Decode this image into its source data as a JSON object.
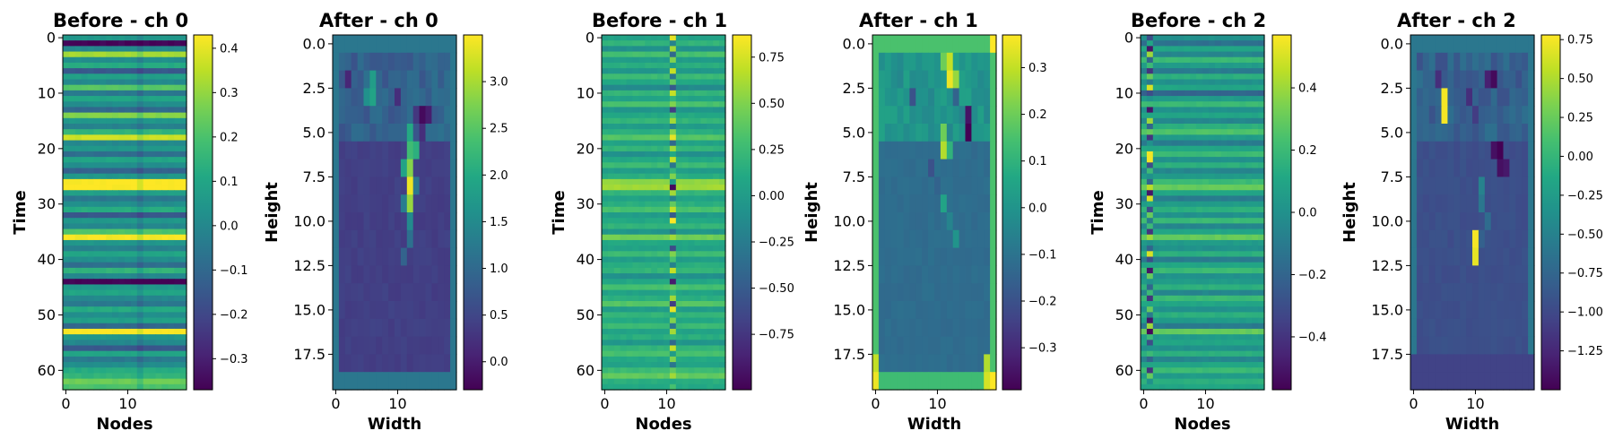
{
  "chart_data": [
    {
      "type": "heatmap",
      "title": "Before - ch 0",
      "xlabel": "Nodes",
      "ylabel": "Time",
      "shape": [
        64,
        20
      ],
      "xticks": [
        0,
        10
      ],
      "xtick_labels": [
        "0",
        "10"
      ],
      "yticks": [
        0,
        10,
        20,
        30,
        40,
        50,
        60
      ],
      "ytick_labels": [
        "0",
        "10",
        "20",
        "30",
        "40",
        "50",
        "60"
      ],
      "colorbar": {
        "min": -0.37,
        "max": 0.43,
        "ticks": [
          -0.3,
          -0.2,
          -0.1,
          0.0,
          0.1,
          0.2,
          0.3,
          0.4
        ],
        "tick_labels": [
          "−0.3",
          "−0.2",
          "−0.1",
          "0.0",
          "0.1",
          "0.2",
          "0.3",
          "0.4"
        ]
      },
      "colormap": "viridis",
      "pattern": "row-stripes",
      "row_values": [
        0.05,
        -0.36,
        0.0,
        0.32,
        0.02,
        0.12,
        -0.15,
        0.08,
        0.0,
        0.22,
        -0.05,
        0.1,
        0.02,
        -0.1,
        0.28,
        0.05,
        -0.02,
        0.15,
        0.37,
        0.0,
        0.05,
        -0.08,
        0.1,
        0.02,
        -0.12,
        0.05,
        0.43,
        0.43,
        0.08,
        -0.05,
        0.02,
        0.12,
        -0.15,
        0.05,
        0.0,
        0.2,
        0.42,
        0.05,
        -0.02,
        0.1,
        0.02,
        -0.08,
        0.15,
        0.0,
        -0.37,
        0.05,
        0.1,
        0.0,
        -0.05,
        0.12,
        0.02,
        0.08,
        -0.1,
        0.43,
        0.05,
        0.0,
        -0.15,
        0.1,
        -0.05,
        0.02,
        0.12,
        0.15,
        0.25,
        0.2
      ],
      "special_col": 12,
      "col_value": -0.05
    },
    {
      "type": "heatmap",
      "title": "After - ch 0",
      "xlabel": "Width",
      "ylabel": "Height",
      "shape": [
        20,
        20
      ],
      "xticks": [
        0,
        10
      ],
      "xtick_labels": [
        "0",
        "10"
      ],
      "yticks": [
        0,
        2.5,
        5.0,
        7.5,
        10.0,
        12.5,
        15.0,
        17.5
      ],
      "ytick_labels": [
        "0.0",
        "2.5",
        "5.0",
        "7.5",
        "10.0",
        "12.5",
        "15.0",
        "17.5"
      ],
      "colorbar": {
        "min": -0.3,
        "max": 3.5,
        "ticks": [
          0.0,
          0.5,
          1.0,
          1.5,
          2.0,
          2.5,
          3.0
        ],
        "tick_labels": [
          "0.0",
          "0.5",
          "1.0",
          "1.5",
          "2.0",
          "2.5",
          "3.0"
        ],
        "tick_precision": 1
      },
      "colormap": "viridis",
      "pattern": "after",
      "border_value": 1.2,
      "bottom_value": 1.2,
      "bottom_rows": 1,
      "interior_value": 0.4,
      "upper_rows": [
        1,
        5
      ],
      "upper_value": 0.9,
      "blobs": [
        {
          "r": 2,
          "c": 2,
          "v": 0.1
        },
        {
          "r": 2,
          "c": 6,
          "v": 1.8
        },
        {
          "r": 3,
          "c": 5,
          "v": 1.6
        },
        {
          "r": 3,
          "c": 6,
          "v": 1.9
        },
        {
          "r": 3,
          "c": 10,
          "v": 0.2
        },
        {
          "r": 4,
          "c": 14,
          "v": -0.2
        },
        {
          "r": 4,
          "c": 15,
          "v": 0.0
        },
        {
          "r": 4,
          "c": 13,
          "v": 0.3
        },
        {
          "r": 5,
          "c": 14,
          "v": 0.2
        },
        {
          "r": 5,
          "c": 12,
          "v": 2.0
        },
        {
          "r": 6,
          "c": 12,
          "v": 2.3
        },
        {
          "r": 6,
          "c": 13,
          "v": 2.1
        },
        {
          "r": 7,
          "c": 12,
          "v": 2.8
        },
        {
          "r": 7,
          "c": 11,
          "v": 1.9
        },
        {
          "r": 8,
          "c": 12,
          "v": 3.4
        },
        {
          "r": 8,
          "c": 11,
          "v": 0.4
        },
        {
          "r": 8,
          "c": 13,
          "v": 1.2
        },
        {
          "r": 9,
          "c": 12,
          "v": 2.9
        },
        {
          "r": 9,
          "c": 11,
          "v": 1.3
        },
        {
          "r": 10,
          "c": 12,
          "v": 1.5
        },
        {
          "r": 11,
          "c": 12,
          "v": 1.1
        },
        {
          "r": 12,
          "c": 11,
          "v": 0.9
        }
      ]
    },
    {
      "type": "heatmap",
      "title": "Before - ch 1",
      "xlabel": "Nodes",
      "ylabel": "Time",
      "shape": [
        64,
        20
      ],
      "xticks": [
        0,
        10
      ],
      "xtick_labels": [
        "0",
        "10"
      ],
      "yticks": [
        0,
        10,
        20,
        30,
        40,
        50,
        60
      ],
      "ytick_labels": [
        "0",
        "10",
        "20",
        "30",
        "40",
        "50",
        "60"
      ],
      "colorbar": {
        "min": -1.05,
        "max": 0.87,
        "ticks": [
          -0.75,
          -0.5,
          -0.25,
          0.0,
          0.25,
          0.5,
          0.75
        ],
        "tick_labels": [
          "−0.75",
          "−0.50",
          "−0.25",
          "0.00",
          "0.25",
          "0.50",
          "0.75"
        ]
      },
      "colormap": "viridis",
      "pattern": "row-stripes",
      "row_values": [
        0.05,
        0.2,
        -0.1,
        0.3,
        0.0,
        0.15,
        -0.05,
        0.25,
        0.1,
        -0.15,
        0.2,
        0.05,
        0.3,
        -0.05,
        0.1,
        0.2,
        0.0,
        0.15,
        0.35,
        0.05,
        0.2,
        -0.1,
        0.1,
        0.25,
        0.0,
        0.15,
        0.55,
        0.6,
        0.2,
        0.05,
        0.15,
        0.3,
        0.0,
        0.1,
        0.2,
        -0.05,
        0.45,
        0.1,
        0.05,
        0.25,
        0.0,
        0.15,
        0.2,
        -0.1,
        0.1,
        0.3,
        0.05,
        0.15,
        0.35,
        0.0,
        0.2,
        0.1,
        0.25,
        0.05,
        0.15,
        -0.05,
        0.2,
        0.3,
        0.1,
        0.05,
        0.25,
        0.4,
        0.15,
        0.1
      ],
      "special_col": 11,
      "col_values": [
        0.8,
        -0.2,
        0.6,
        -0.4,
        0.5,
        0.0,
        0.7,
        -0.3,
        0.4,
        -0.5,
        0.7,
        0.2,
        0.5,
        -0.7,
        0.3,
        0.6,
        -0.2,
        0.5,
        0.8,
        -0.4,
        0.6,
        0.1,
        0.7,
        -0.3,
        0.2,
        0.5,
        0.0,
        -1.0,
        0.6,
        -0.2,
        0.4,
        0.7,
        -0.5,
        0.9,
        0.2,
        -0.3,
        0.6,
        0.1,
        -0.6,
        0.5,
        0.3,
        -0.2,
        0.7,
        0.0,
        -0.9,
        0.4,
        0.2,
        0.6,
        -0.7,
        0.8,
        0.1,
        0.5,
        -0.3,
        0.6,
        0.2,
        -0.4,
        0.7,
        0.0,
        0.5,
        -0.3,
        0.4,
        0.6,
        0.1,
        0.3
      ]
    },
    {
      "type": "heatmap",
      "title": "After - ch 1",
      "xlabel": "Width",
      "ylabel": "Height",
      "shape": [
        20,
        20
      ],
      "xticks": [
        0,
        10
      ],
      "xtick_labels": [
        "0",
        "10"
      ],
      "yticks": [
        0,
        2.5,
        5.0,
        7.5,
        10.0,
        12.5,
        15.0,
        17.5
      ],
      "ytick_labels": [
        "0.0",
        "2.5",
        "5.0",
        "7.5",
        "10.0",
        "12.5",
        "15.0",
        "17.5"
      ],
      "colorbar": {
        "min": -0.39,
        "max": 0.37,
        "ticks": [
          -0.3,
          -0.2,
          -0.1,
          0.0,
          0.1,
          0.2,
          0.3
        ],
        "tick_labels": [
          "−0.3",
          "−0.2",
          "−0.1",
          "0.0",
          "0.1",
          "0.2",
          "0.3"
        ]
      },
      "colormap": "viridis",
      "pattern": "after",
      "border_value": 0.15,
      "bottom_value": 0.13,
      "bottom_rows": 1,
      "interior_value": -0.12,
      "upper_rows": [
        1,
        5
      ],
      "upper_value": 0.0,
      "blobs": [
        {
          "r": 0,
          "c": 19,
          "v": 0.37
        },
        {
          "r": 1,
          "c": 12,
          "v": 0.3
        },
        {
          "r": 2,
          "c": 12,
          "v": 0.35
        },
        {
          "r": 2,
          "c": 13,
          "v": 0.25
        },
        {
          "r": 1,
          "c": 11,
          "v": 0.2
        },
        {
          "r": 3,
          "c": 6,
          "v": -0.2
        },
        {
          "r": 3,
          "c": 13,
          "v": -0.15
        },
        {
          "r": 4,
          "c": 15,
          "v": -0.35
        },
        {
          "r": 5,
          "c": 15,
          "v": -0.39
        },
        {
          "r": 4,
          "c": 14,
          "v": -0.05
        },
        {
          "r": 5,
          "c": 11,
          "v": 0.2
        },
        {
          "r": 6,
          "c": 11,
          "v": 0.28
        },
        {
          "r": 6,
          "c": 12,
          "v": 0.1
        },
        {
          "r": 7,
          "c": 9,
          "v": -0.2
        },
        {
          "r": 8,
          "c": 10,
          "v": -0.15
        },
        {
          "r": 9,
          "c": 11,
          "v": 0.05
        },
        {
          "r": 10,
          "c": 12,
          "v": -0.05
        },
        {
          "r": 11,
          "c": 13,
          "v": 0.0
        },
        {
          "r": 18,
          "c": 0,
          "v": 0.3
        },
        {
          "r": 19,
          "c": 0,
          "v": 0.35
        },
        {
          "r": 19,
          "c": 19,
          "v": 0.37
        },
        {
          "r": 18,
          "c": 18,
          "v": 0.28
        },
        {
          "r": 19,
          "c": 18,
          "v": 0.32
        }
      ]
    },
    {
      "type": "heatmap",
      "title": "Before - ch 2",
      "xlabel": "Nodes",
      "ylabel": "Time",
      "shape": [
        64,
        20
      ],
      "xticks": [
        0,
        10
      ],
      "xtick_labels": [
        "0",
        "10"
      ],
      "yticks": [
        0,
        10,
        20,
        30,
        40,
        50,
        60
      ],
      "ytick_labels": [
        "0",
        "10",
        "20",
        "30",
        "40",
        "50",
        "60"
      ],
      "colorbar": {
        "min": -0.57,
        "max": 0.57,
        "ticks": [
          -0.4,
          -0.2,
          0.0,
          0.2,
          0.4
        ],
        "tick_labels": [
          "−0.4",
          "−0.2",
          "0.0",
          "0.2",
          "0.4"
        ]
      },
      "colormap": "viridis",
      "pattern": "row-stripes",
      "row_values": [
        0.0,
        -0.15,
        0.1,
        -0.05,
        0.2,
        0.05,
        -0.1,
        0.15,
        0.0,
        0.1,
        -0.2,
        0.05,
        0.2,
        0.0,
        0.1,
        -0.05,
        0.15,
        0.25,
        0.05,
        -0.1,
        0.1,
        0.2,
        0.0,
        0.15,
        -0.05,
        0.05,
        0.2,
        0.3,
        0.1,
        -0.1,
        0.05,
        0.15,
        0.0,
        0.2,
        -0.05,
        0.1,
        0.3,
        0.05,
        0.0,
        0.15,
        -0.1,
        0.1,
        0.2,
        0.0,
        0.05,
        0.15,
        -0.05,
        0.2,
        0.1,
        0.0,
        0.15,
        0.05,
        -0.1,
        0.3,
        0.05,
        0.1,
        0.0,
        0.15,
        -0.05,
        0.1,
        0.2,
        0.05,
        0.15,
        0.1
      ],
      "special_col": 1,
      "col_values": [
        -0.3,
        0.1,
        -0.5,
        0.4,
        -0.2,
        0.2,
        -0.4,
        0.3,
        -0.1,
        0.5,
        -0.3,
        0.0,
        0.2,
        -0.5,
        0.1,
        0.4,
        -0.2,
        0.3,
        -0.4,
        0.0,
        0.1,
        0.55,
        0.55,
        -0.3,
        0.2,
        0.0,
        -0.2,
        0.45,
        -0.5,
        0.5,
        0.1,
        -0.3,
        0.3,
        -0.1,
        0.2,
        -0.4,
        0.4,
        0.0,
        -0.2,
        0.5,
        -0.3,
        0.1,
        -0.5,
        0.3,
        0.0,
        -0.2,
        0.2,
        -0.4,
        0.1,
        0.3,
        -0.1,
        -0.5,
        0.4,
        -0.55,
        0.2,
        -0.3,
        0.0,
        0.2,
        -0.2,
        0.1,
        -0.4,
        0.3,
        0.0,
        0.1
      ]
    },
    {
      "type": "heatmap",
      "title": "After - ch 2",
      "xlabel": "Width",
      "ylabel": "Height",
      "shape": [
        20,
        20
      ],
      "xticks": [
        0,
        10
      ],
      "xtick_labels": [
        "0",
        "10"
      ],
      "yticks": [
        0,
        2.5,
        5.0,
        7.5,
        10.0,
        12.5,
        15.0,
        17.5
      ],
      "ytick_labels": [
        "0.0",
        "2.5",
        "5.0",
        "7.5",
        "10.0",
        "12.5",
        "15.0",
        "17.5"
      ],
      "colorbar": {
        "min": -1.5,
        "max": 0.78,
        "ticks": [
          -1.25,
          -1.0,
          -0.75,
          -0.5,
          -0.25,
          0.0,
          0.25,
          0.5,
          0.75
        ],
        "tick_labels": [
          "−1.25",
          "−1.00",
          "−0.75",
          "−0.50",
          "−0.25",
          "0.00",
          "0.25",
          "0.50",
          "0.75"
        ]
      },
      "colormap": "viridis",
      "pattern": "after",
      "border_value": -0.6,
      "bottom_value": -1.05,
      "bottom_rows": 2,
      "interior_value": -0.95,
      "upper_rows": [
        1,
        5
      ],
      "upper_value": -0.8,
      "blobs": [
        {
          "r": 2,
          "c": 4,
          "v": -1.2
        },
        {
          "r": 2,
          "c": 7,
          "v": -0.9
        },
        {
          "r": 2,
          "c": 12,
          "v": -1.3
        },
        {
          "r": 2,
          "c": 13,
          "v": -1.45
        },
        {
          "r": 3,
          "c": 5,
          "v": 0.75
        },
        {
          "r": 4,
          "c": 5,
          "v": 0.75
        },
        {
          "r": 3,
          "c": 9,
          "v": -1.2
        },
        {
          "r": 4,
          "c": 10,
          "v": -1.1
        },
        {
          "r": 6,
          "c": 13,
          "v": -1.4
        },
        {
          "r": 6,
          "c": 14,
          "v": -1.5
        },
        {
          "r": 7,
          "c": 14,
          "v": -1.4
        },
        {
          "r": 7,
          "c": 15,
          "v": -1.35
        },
        {
          "r": 8,
          "c": 11,
          "v": -0.5
        },
        {
          "r": 9,
          "c": 11,
          "v": -0.6
        },
        {
          "r": 10,
          "c": 12,
          "v": -0.7
        },
        {
          "r": 11,
          "c": 10,
          "v": 0.75
        },
        {
          "r": 12,
          "c": 10,
          "v": 0.7
        },
        {
          "r": 11,
          "c": 11,
          "v": -0.8
        }
      ]
    }
  ]
}
